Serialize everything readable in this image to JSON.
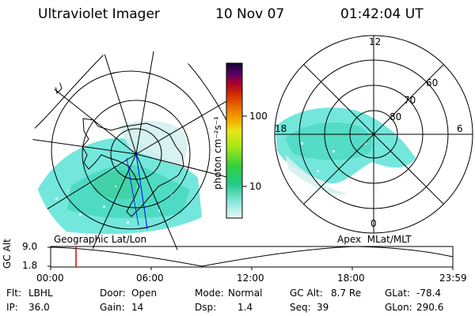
{
  "header": {
    "instrument": "Ultraviolet Imager",
    "date": "10 Nov 07",
    "time": "01:42:04 UT"
  },
  "colorbar": {
    "unit_label": "photon cm⁻²s⁻¹",
    "ticks": [
      "100",
      "10"
    ],
    "scale": "log",
    "colors": [
      "#d4f0f0",
      "#5ce3d6",
      "#22c98a",
      "#34d13a",
      "#a6e817",
      "#e7e51a",
      "#f4a500",
      "#e66b00",
      "#d42a00",
      "#a8002c",
      "#6a0054",
      "#3a0066",
      "#140033"
    ]
  },
  "left_map": {
    "label": "Geographic Lat/Lon"
  },
  "right_map": {
    "label": "Apex  MLat/MLT",
    "mlt_labels": {
      "top": "12",
      "left": "18",
      "right": "6",
      "bottom": "0"
    },
    "mlat_labels": [
      "60",
      "70",
      "80"
    ]
  },
  "timeline": {
    "ylabel": "GC Alt",
    "ytick_top": "9.0",
    "ytick_bottom": "1.8",
    "xticks": [
      "00:00",
      "06:00",
      "12:00",
      "18:00",
      "23:59"
    ],
    "marker_color": "#e00000"
  },
  "info": {
    "flt_label": "Flt:",
    "flt_value": "LBHL",
    "ip_label": "IP:",
    "ip_value": "36.0",
    "door_label": "Door:",
    "door_value": "Open",
    "gain_label": "Gain:",
    "gain_value": "14",
    "mode_label": "Mode:",
    "mode_value": "Normal",
    "dsp_label": "Dsp:",
    "dsp_value": "1.4",
    "gcalt_label": "GC Alt:",
    "gcalt_value": "8.7 Re",
    "seq_label": "Seq:",
    "seq_value": "39",
    "glat_label": "GLat:",
    "glat_value": "-78.4",
    "glon_label": "GLon:",
    "glon_value": "290.6"
  }
}
